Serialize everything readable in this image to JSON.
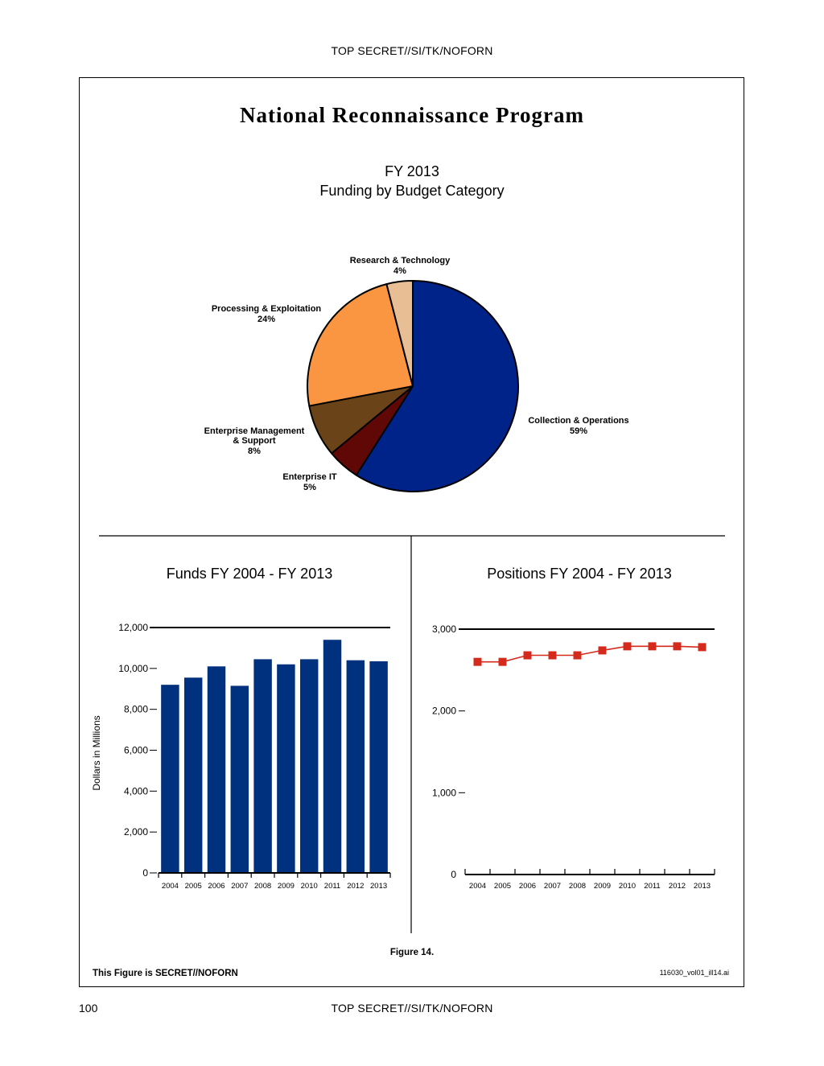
{
  "header": {
    "classification": "TOP SECRET//SI/TK/NOFORN"
  },
  "footer": {
    "page_number": "100",
    "classification": "TOP SECRET//SI/TK/NOFORN"
  },
  "figure": {
    "title": "National Reconnaissance Program",
    "caption": "Figure 14.",
    "classification_note": "This Figure is SECRET//NOFORN",
    "file_ref": "116030_vol01_ill14.ai"
  },
  "chart_data": [
    {
      "type": "pie",
      "title_line1": "FY 2013",
      "title_line2": "Funding by Budget Category",
      "slices": [
        {
          "label": "Collection & Operations",
          "percent_label": "59%",
          "value": 59,
          "color": "#00238A"
        },
        {
          "label": "Enterprise IT",
          "percent_label": "5%",
          "value": 5,
          "color": "#5F0806"
        },
        {
          "label_line1": "Enterprise Management",
          "label_line2": "& Support",
          "percent_label": "8%",
          "value": 8,
          "color": "#6A4318"
        },
        {
          "label": "Processing & Exploitation",
          "percent_label": "24%",
          "value": 24,
          "color": "#FA9642"
        },
        {
          "label": "Research & Technology",
          "percent_label": "4%",
          "value": 4,
          "color": "#E8BF95"
        }
      ]
    },
    {
      "type": "bar",
      "title": "Funds FY 2004 - FY 2013",
      "ylabel": "Dollars in Millions",
      "categories": [
        "2004",
        "2005",
        "2006",
        "2007",
        "2008",
        "2009",
        "2010",
        "2011",
        "2012",
        "2013"
      ],
      "values": [
        9200,
        9550,
        10100,
        9150,
        10450,
        10200,
        10450,
        11400,
        10400,
        10350
      ],
      "ylim": [
        0,
        12000
      ],
      "yticks": [
        "0",
        "2,000",
        "4,000",
        "6,000",
        "8,000",
        "10,000",
        "12,000"
      ],
      "ytick_values": [
        0,
        2000,
        4000,
        6000,
        8000,
        10000,
        12000
      ],
      "bar_color": "#00317E"
    },
    {
      "type": "line",
      "title": "Positions FY 2004 - FY 2013",
      "categories": [
        "2004",
        "2005",
        "2006",
        "2007",
        "2008",
        "2009",
        "2010",
        "2011",
        "2012",
        "2013"
      ],
      "values": [
        2600,
        2600,
        2680,
        2680,
        2680,
        2740,
        2790,
        2790,
        2790,
        2780
      ],
      "ylim": [
        0,
        3000
      ],
      "yticks": [
        "0",
        "1,000",
        "2,000",
        "3,000"
      ],
      "ytick_values": [
        0,
        1000,
        2000,
        3000
      ],
      "line_color": "#D42A1B",
      "marker": "square"
    }
  ]
}
